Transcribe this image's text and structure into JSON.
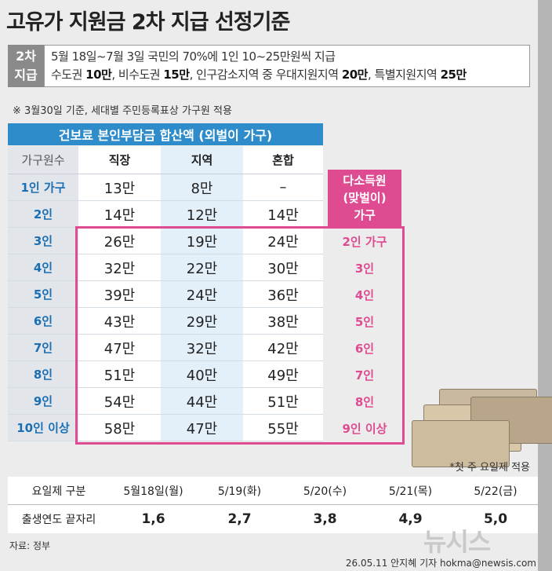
{
  "header": {
    "title": "고유가 지원금 2차 지급 선정기준"
  },
  "summary": {
    "label_lines": [
      "2차",
      "지급"
    ],
    "line1": "5월 18일~7월 3일 국민의 70%에 1인 10~25만원씩 지급",
    "line2_parts": [
      "수도권 ",
      "10만",
      ", 비수도권 ",
      "15만",
      ", 인구감소지역 중 우대지원지역 ",
      "20만",
      ", 특별지원지역 ",
      "25만"
    ]
  },
  "note": "※ 3월30일 기준, 세대별 주민등록표상 가구원 적용",
  "table": {
    "title": "건보료 본인부담금 합산액 (외벌이 가구)",
    "columns": [
      "가구원수",
      "직장",
      "지역",
      "혼합"
    ],
    "rows": [
      [
        "1인 가구",
        "13만",
        "8만",
        "–"
      ],
      [
        "2인",
        "14만",
        "12만",
        "14만"
      ],
      [
        "3인",
        "26만",
        "19만",
        "24만"
      ],
      [
        "4인",
        "32만",
        "22만",
        "30만"
      ],
      [
        "5인",
        "39만",
        "24만",
        "36만"
      ],
      [
        "6인",
        "43만",
        "29만",
        "38만"
      ],
      [
        "7인",
        "47만",
        "32만",
        "42만"
      ],
      [
        "8인",
        "51만",
        "40만",
        "49만"
      ],
      [
        "9인",
        "54만",
        "44만",
        "51만"
      ],
      [
        "10인 이상",
        "58만",
        "47만",
        "55만"
      ]
    ],
    "dual_title_lines": [
      "다소득원",
      "(맞벌이)",
      "가구"
    ],
    "dual_rows": [
      "2인 가구",
      "3인",
      "4인",
      "5인",
      "6인",
      "7인",
      "8인",
      "9인 이상"
    ]
  },
  "schedule": {
    "footnote": "*첫 주 요일제 적용",
    "rows": [
      [
        "요일제 구분",
        "5월18일(월)",
        "5/19(화)",
        "5/20(수)",
        "5/21(목)",
        "5/22(금)"
      ],
      [
        "출생연도 끝자리",
        "1,6",
        "2,7",
        "3,8",
        "4,9",
        "5,0"
      ]
    ]
  },
  "footer": {
    "source": "자료: 정부",
    "credit": "26.05.11 안지혜 기자 hokma@newsis.com",
    "logo": "뉴시스"
  }
}
